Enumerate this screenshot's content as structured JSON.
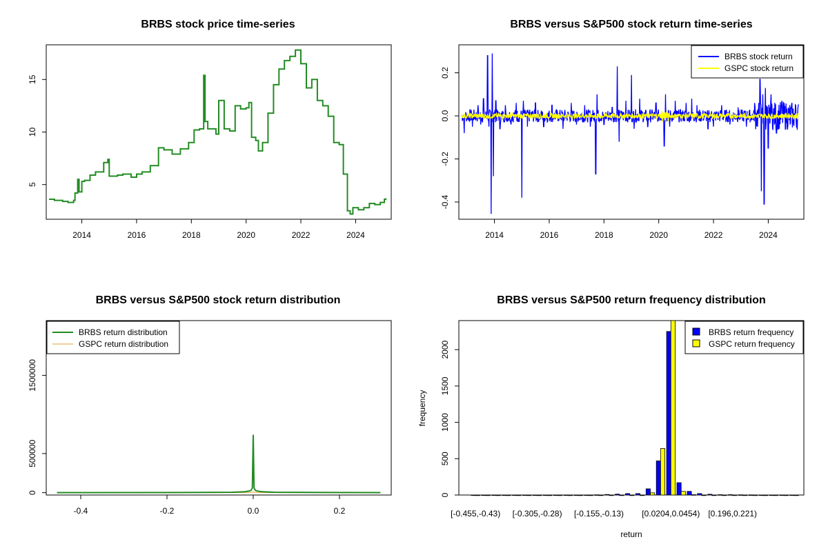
{
  "chart_data": [
    {
      "type": "line",
      "title": "BRBS stock price time-series",
      "xlabel": "",
      "ylabel": "",
      "xlim": [
        2012.7,
        2025.3
      ],
      "ylim": [
        1.7,
        18.3
      ],
      "x_ticks": [
        2014,
        2016,
        2018,
        2020,
        2022,
        2024
      ],
      "y_ticks": [
        5,
        10,
        15
      ],
      "color": "#228B22",
      "series": [
        {
          "x": [
            2012.8,
            2013.0,
            2013.3,
            2013.5,
            2013.7,
            2013.75,
            2013.85,
            2013.9,
            2014.0,
            2014.1,
            2014.3,
            2014.5,
            2014.8,
            2014.95,
            2015.0,
            2015.3,
            2015.5,
            2015.8,
            2016.0,
            2016.2,
            2016.5,
            2016.8,
            2017.0,
            2017.3,
            2017.6,
            2017.9,
            2018.1,
            2018.3,
            2018.45,
            2018.5,
            2018.6,
            2018.9,
            2019.0,
            2019.2,
            2019.4,
            2019.6,
            2019.8,
            2020.0,
            2020.1,
            2020.2,
            2020.35,
            2020.45,
            2020.6,
            2020.8,
            2021.0,
            2021.2,
            2021.4,
            2021.6,
            2021.8,
            2022.0,
            2022.2,
            2022.4,
            2022.6,
            2022.8,
            2023.0,
            2023.2,
            2023.4,
            2023.55,
            2023.7,
            2023.8,
            2023.9,
            2024.1,
            2024.3,
            2024.5,
            2024.7,
            2024.9,
            2025.05,
            2025.1
          ],
          "y": [
            3.6,
            3.5,
            3.4,
            3.3,
            3.5,
            4.2,
            5.5,
            4.3,
            5.3,
            5.4,
            5.9,
            6.2,
            7.1,
            7.4,
            5.8,
            5.9,
            6.0,
            5.7,
            6.0,
            6.2,
            6.8,
            8.5,
            8.3,
            7.9,
            8.4,
            9.0,
            10.2,
            10.3,
            15.4,
            11.0,
            10.3,
            9.8,
            13.0,
            10.3,
            10.1,
            12.5,
            12.2,
            12.3,
            12.8,
            9.5,
            9.2,
            8.2,
            9.0,
            11.8,
            14.5,
            16.0,
            16.8,
            17.2,
            17.8,
            16.5,
            14.2,
            15.0,
            13.0,
            12.5,
            11.5,
            9.0,
            8.8,
            6.0,
            2.5,
            2.2,
            2.8,
            2.6,
            2.8,
            3.2,
            3.1,
            3.3,
            3.6,
            3.7
          ]
        }
      ]
    },
    {
      "type": "line",
      "title": "BRBS versus S&P500 stock return time-series",
      "xlabel": "",
      "ylabel": "",
      "xlim": [
        2012.7,
        2025.3
      ],
      "ylim": [
        -0.48,
        0.33
      ],
      "x_ticks": [
        2014,
        2016,
        2018,
        2020,
        2022,
        2024
      ],
      "y_ticks": [
        -0.4,
        -0.2,
        0.0,
        0.2
      ],
      "y_tick_labels": [
        "-0.4",
        "-0.2",
        "0.0",
        "0.2"
      ],
      "legend_position": "top-right",
      "spikes": [
        [
          2012.9,
          -0.08
        ],
        [
          2013.2,
          -0.05
        ],
        [
          2013.4,
          0.05
        ],
        [
          2013.5,
          -0.04
        ],
        [
          2013.6,
          0.08
        ],
        [
          2013.75,
          0.28
        ],
        [
          2013.8,
          -0.05
        ],
        [
          2013.88,
          -0.455
        ],
        [
          2013.92,
          0.29
        ],
        [
          2013.96,
          -0.28
        ],
        [
          2014.05,
          0.07
        ],
        [
          2014.2,
          -0.06
        ],
        [
          2014.4,
          0.05
        ],
        [
          2014.6,
          -0.04
        ],
        [
          2014.8,
          0.06
        ],
        [
          2015.0,
          -0.38
        ],
        [
          2015.05,
          0.07
        ],
        [
          2015.2,
          -0.05
        ],
        [
          2015.5,
          0.06
        ],
        [
          2015.8,
          -0.05
        ],
        [
          2016.1,
          0.05
        ],
        [
          2016.5,
          -0.06
        ],
        [
          2016.8,
          0.06
        ],
        [
          2017.0,
          -0.04
        ],
        [
          2017.3,
          0.05
        ],
        [
          2017.5,
          -0.05
        ],
        [
          2017.7,
          -0.27
        ],
        [
          2017.75,
          0.1
        ],
        [
          2018.0,
          -0.04
        ],
        [
          2018.3,
          0.04
        ],
        [
          2018.48,
          0.23
        ],
        [
          2018.55,
          -0.12
        ],
        [
          2018.8,
          0.07
        ],
        [
          2019.0,
          0.19
        ],
        [
          2019.1,
          -0.06
        ],
        [
          2019.3,
          0.08
        ],
        [
          2019.6,
          -0.05
        ],
        [
          2019.9,
          0.06
        ],
        [
          2020.2,
          -0.14
        ],
        [
          2020.25,
          0.1
        ],
        [
          2020.4,
          -0.05
        ],
        [
          2020.6,
          0.07
        ],
        [
          2021.0,
          0.06
        ],
        [
          2021.2,
          0.08
        ],
        [
          2021.4,
          0.05
        ],
        [
          2021.8,
          -0.06
        ],
        [
          2022.0,
          -0.05
        ],
        [
          2022.3,
          0.05
        ],
        [
          2022.6,
          -0.04
        ],
        [
          2022.9,
          0.04
        ],
        [
          2023.2,
          -0.05
        ],
        [
          2023.5,
          0.06
        ],
        [
          2023.7,
          0.17
        ],
        [
          2023.75,
          -0.35
        ],
        [
          2023.8,
          0.1
        ],
        [
          2023.85,
          -0.41
        ],
        [
          2023.9,
          0.13
        ],
        [
          2024.0,
          -0.15
        ],
        [
          2024.1,
          0.1
        ],
        [
          2024.3,
          -0.08
        ],
        [
          2024.5,
          0.07
        ],
        [
          2024.8,
          -0.04
        ],
        [
          2025.0,
          0.05
        ]
      ],
      "series": [
        {
          "name": "BRBS stock return",
          "color": "#0000FF",
          "noise_amplitude": 0.03
        },
        {
          "name": "GSPC stock return",
          "color": "#FFFF00",
          "noise_amplitude": 0.012
        }
      ]
    },
    {
      "type": "line",
      "title": "BRBS versus S&P500 stock return distribution",
      "xlabel": "",
      "ylabel": "",
      "xlim": [
        -0.48,
        0.32
      ],
      "ylim": [
        -30000,
        2200000
      ],
      "x_ticks": [
        -0.4,
        -0.2,
        0.0,
        0.2
      ],
      "x_tick_labels": [
        "-0.4",
        "-0.2",
        "0.0",
        "0.2"
      ],
      "y_ticks": [
        0,
        500000,
        1500000
      ],
      "y_tick_labels": [
        "0",
        "500000",
        "1500000"
      ],
      "legend_position": "top-left",
      "series": [
        {
          "name": "BRBS return distribution",
          "color": "#228B22",
          "x": [
            -0.455,
            -0.2,
            -0.05,
            -0.02,
            -0.01,
            -0.005,
            -0.002,
            0.0,
            0.002,
            0.005,
            0.01,
            0.02,
            0.05,
            0.2,
            0.295
          ],
          "y": [
            1000,
            2000,
            5000,
            12000,
            20000,
            30000,
            60000,
            740000,
            60000,
            30000,
            20000,
            12000,
            5000,
            2000,
            1000
          ]
        },
        {
          "name": "GSPC return distribution",
          "color": "#E0A030",
          "x": [
            -0.455,
            -0.05,
            -0.01,
            0.0,
            0.01,
            0.05,
            0.295
          ],
          "y": [
            0,
            0,
            3000,
            6000,
            3000,
            0,
            0
          ]
        }
      ]
    },
    {
      "type": "bar",
      "title": "BRBS versus S&P500 return frequency distribution",
      "xlabel": "return",
      "ylabel": "frequency",
      "ylim": [
        0,
        2400
      ],
      "y_ticks": [
        0,
        500,
        1000,
        1500,
        2000
      ],
      "tick_labels": [
        {
          "index": 0,
          "label": "[-0.455,-0.43)"
        },
        {
          "index": 6,
          "label": "[-0.305,-0.28)"
        },
        {
          "index": 12,
          "label": "[-0.155,-0.13)"
        },
        {
          "index": 19,
          "label": "[0.0204,0.0454)"
        },
        {
          "index": 25,
          "label": "[0.196,0.221)"
        }
      ],
      "legend_position": "top-right",
      "series": [
        {
          "name": "BRBS return frequency",
          "color": "#0000FF",
          "values": [
            1,
            1,
            1,
            1,
            1,
            1,
            1,
            1,
            1,
            1,
            1,
            1,
            3,
            8,
            12,
            20,
            20,
            85,
            470,
            2250,
            170,
            50,
            20,
            10,
            5,
            5,
            3,
            2,
            1,
            1,
            1,
            1
          ]
        },
        {
          "name": "GSPC return frequency",
          "color": "#FFFF00",
          "values": [
            0,
            0,
            0,
            0,
            0,
            0,
            0,
            0,
            0,
            0,
            0,
            0,
            0,
            0,
            0,
            0,
            0,
            30,
            640,
            2400,
            50,
            5,
            0,
            0,
            0,
            0,
            0,
            0,
            0,
            0,
            0,
            0
          ]
        }
      ]
    }
  ]
}
